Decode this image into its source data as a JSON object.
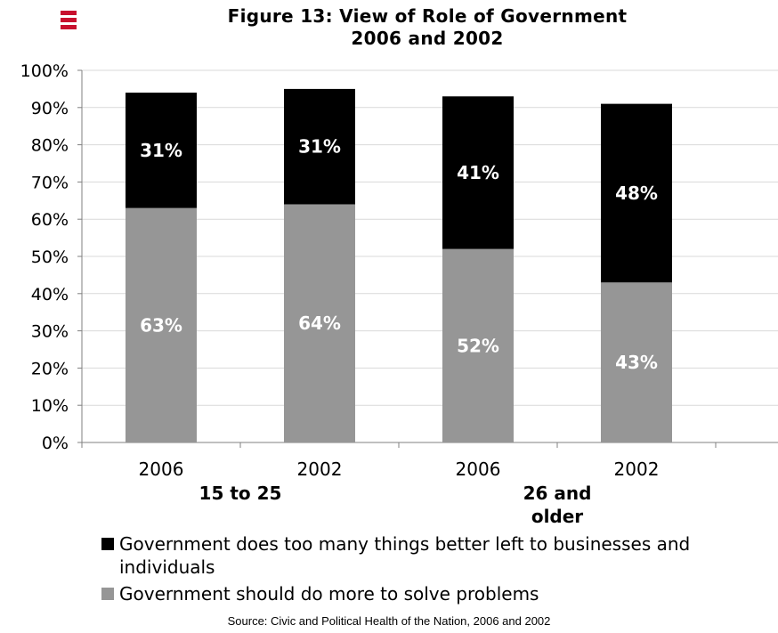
{
  "chart_data": {
    "type": "bar",
    "stacked": true,
    "title": [
      "Figure 13: View of Role of Government",
      "2006 and 2002"
    ],
    "categories": [
      "2006",
      "2002",
      "2006",
      "2002"
    ],
    "groups": [
      {
        "label": "15 to 25",
        "categories": [
          0,
          1
        ]
      },
      {
        "label": "26 and\nolder",
        "categories": [
          2,
          3
        ]
      }
    ],
    "series": [
      {
        "name": "Government should do more to solve problems",
        "color": "#969696",
        "values": [
          63,
          64,
          52,
          43
        ],
        "labels": [
          "63%",
          "64%",
          "52%",
          "43%"
        ]
      },
      {
        "name": "Government does too many things better left to businesses and individuals",
        "color": "#000000",
        "values": [
          31,
          31,
          41,
          48
        ],
        "labels": [
          "31%",
          "31%",
          "41%",
          "48%"
        ]
      }
    ],
    "ylim": [
      0,
      100
    ],
    "yticks": [
      "0%",
      "10%",
      "20%",
      "30%",
      "40%",
      "50%",
      "60%",
      "70%",
      "80%",
      "90%",
      "100%"
    ],
    "grid": true,
    "legend_position": "bottom"
  },
  "legend": [
    {
      "label_lines": [
        "Government does too many things better left to businesses and",
        "individuals"
      ],
      "color": "#000000"
    },
    {
      "label_lines": [
        "Government should do more to solve problems"
      ],
      "color": "#969696"
    }
  ],
  "source": "Source:  Civic and Political Health of the Nation, 2006 and 2002",
  "brand_color": "#c8102e"
}
